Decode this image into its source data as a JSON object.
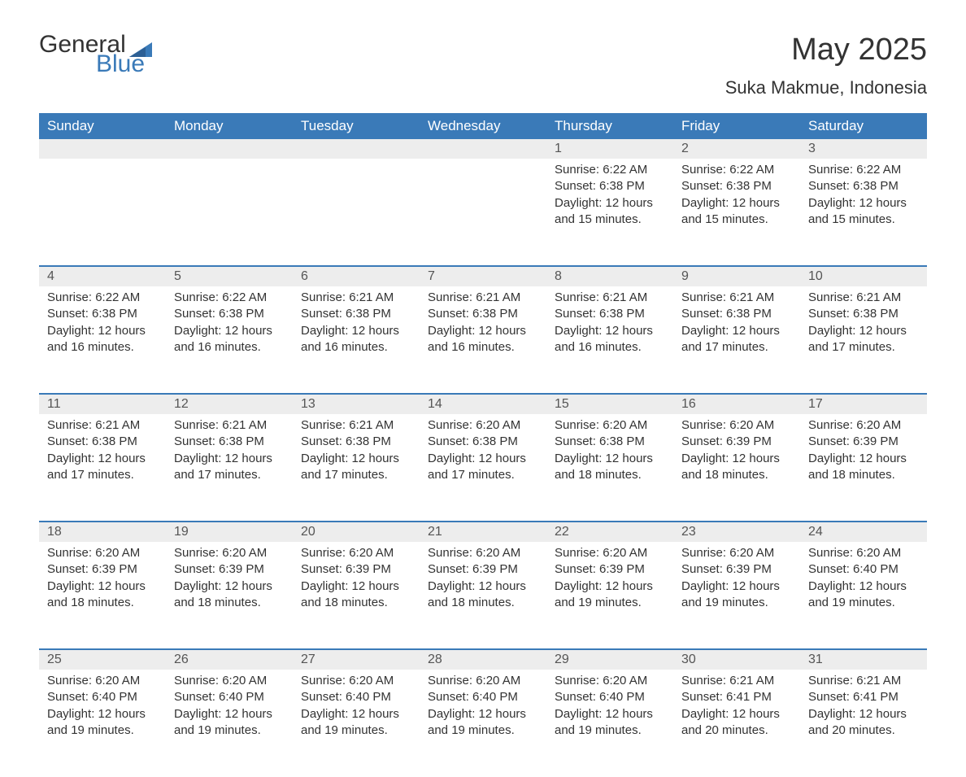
{
  "logo": {
    "text1": "General",
    "text2": "Blue",
    "iconColor": "#3a7ab8"
  },
  "title": "May 2025",
  "subtitle": "Suka Makmue, Indonesia",
  "colors": {
    "headerBg": "#3a7ab8",
    "headerText": "#ffffff",
    "dayBg": "#ededed",
    "text": "#333333",
    "pageBg": "#ffffff"
  },
  "dayNames": [
    "Sunday",
    "Monday",
    "Tuesday",
    "Wednesday",
    "Thursday",
    "Friday",
    "Saturday"
  ],
  "weeks": [
    [
      null,
      null,
      null,
      null,
      {
        "n": "1",
        "sr": "6:22 AM",
        "ss": "6:38 PM",
        "dl": "12 hours and 15 minutes."
      },
      {
        "n": "2",
        "sr": "6:22 AM",
        "ss": "6:38 PM",
        "dl": "12 hours and 15 minutes."
      },
      {
        "n": "3",
        "sr": "6:22 AM",
        "ss": "6:38 PM",
        "dl": "12 hours and 15 minutes."
      }
    ],
    [
      {
        "n": "4",
        "sr": "6:22 AM",
        "ss": "6:38 PM",
        "dl": "12 hours and 16 minutes."
      },
      {
        "n": "5",
        "sr": "6:22 AM",
        "ss": "6:38 PM",
        "dl": "12 hours and 16 minutes."
      },
      {
        "n": "6",
        "sr": "6:21 AM",
        "ss": "6:38 PM",
        "dl": "12 hours and 16 minutes."
      },
      {
        "n": "7",
        "sr": "6:21 AM",
        "ss": "6:38 PM",
        "dl": "12 hours and 16 minutes."
      },
      {
        "n": "8",
        "sr": "6:21 AM",
        "ss": "6:38 PM",
        "dl": "12 hours and 16 minutes."
      },
      {
        "n": "9",
        "sr": "6:21 AM",
        "ss": "6:38 PM",
        "dl": "12 hours and 17 minutes."
      },
      {
        "n": "10",
        "sr": "6:21 AM",
        "ss": "6:38 PM",
        "dl": "12 hours and 17 minutes."
      }
    ],
    [
      {
        "n": "11",
        "sr": "6:21 AM",
        "ss": "6:38 PM",
        "dl": "12 hours and 17 minutes."
      },
      {
        "n": "12",
        "sr": "6:21 AM",
        "ss": "6:38 PM",
        "dl": "12 hours and 17 minutes."
      },
      {
        "n": "13",
        "sr": "6:21 AM",
        "ss": "6:38 PM",
        "dl": "12 hours and 17 minutes."
      },
      {
        "n": "14",
        "sr": "6:20 AM",
        "ss": "6:38 PM",
        "dl": "12 hours and 17 minutes."
      },
      {
        "n": "15",
        "sr": "6:20 AM",
        "ss": "6:38 PM",
        "dl": "12 hours and 18 minutes."
      },
      {
        "n": "16",
        "sr": "6:20 AM",
        "ss": "6:39 PM",
        "dl": "12 hours and 18 minutes."
      },
      {
        "n": "17",
        "sr": "6:20 AM",
        "ss": "6:39 PM",
        "dl": "12 hours and 18 minutes."
      }
    ],
    [
      {
        "n": "18",
        "sr": "6:20 AM",
        "ss": "6:39 PM",
        "dl": "12 hours and 18 minutes."
      },
      {
        "n": "19",
        "sr": "6:20 AM",
        "ss": "6:39 PM",
        "dl": "12 hours and 18 minutes."
      },
      {
        "n": "20",
        "sr": "6:20 AM",
        "ss": "6:39 PM",
        "dl": "12 hours and 18 minutes."
      },
      {
        "n": "21",
        "sr": "6:20 AM",
        "ss": "6:39 PM",
        "dl": "12 hours and 18 minutes."
      },
      {
        "n": "22",
        "sr": "6:20 AM",
        "ss": "6:39 PM",
        "dl": "12 hours and 19 minutes."
      },
      {
        "n": "23",
        "sr": "6:20 AM",
        "ss": "6:39 PM",
        "dl": "12 hours and 19 minutes."
      },
      {
        "n": "24",
        "sr": "6:20 AM",
        "ss": "6:40 PM",
        "dl": "12 hours and 19 minutes."
      }
    ],
    [
      {
        "n": "25",
        "sr": "6:20 AM",
        "ss": "6:40 PM",
        "dl": "12 hours and 19 minutes."
      },
      {
        "n": "26",
        "sr": "6:20 AM",
        "ss": "6:40 PM",
        "dl": "12 hours and 19 minutes."
      },
      {
        "n": "27",
        "sr": "6:20 AM",
        "ss": "6:40 PM",
        "dl": "12 hours and 19 minutes."
      },
      {
        "n": "28",
        "sr": "6:20 AM",
        "ss": "6:40 PM",
        "dl": "12 hours and 19 minutes."
      },
      {
        "n": "29",
        "sr": "6:20 AM",
        "ss": "6:40 PM",
        "dl": "12 hours and 19 minutes."
      },
      {
        "n": "30",
        "sr": "6:21 AM",
        "ss": "6:41 PM",
        "dl": "12 hours and 20 minutes."
      },
      {
        "n": "31",
        "sr": "6:21 AM",
        "ss": "6:41 PM",
        "dl": "12 hours and 20 minutes."
      }
    ]
  ],
  "labels": {
    "sunrise": "Sunrise: ",
    "sunset": "Sunset: ",
    "daylight": "Daylight: "
  }
}
